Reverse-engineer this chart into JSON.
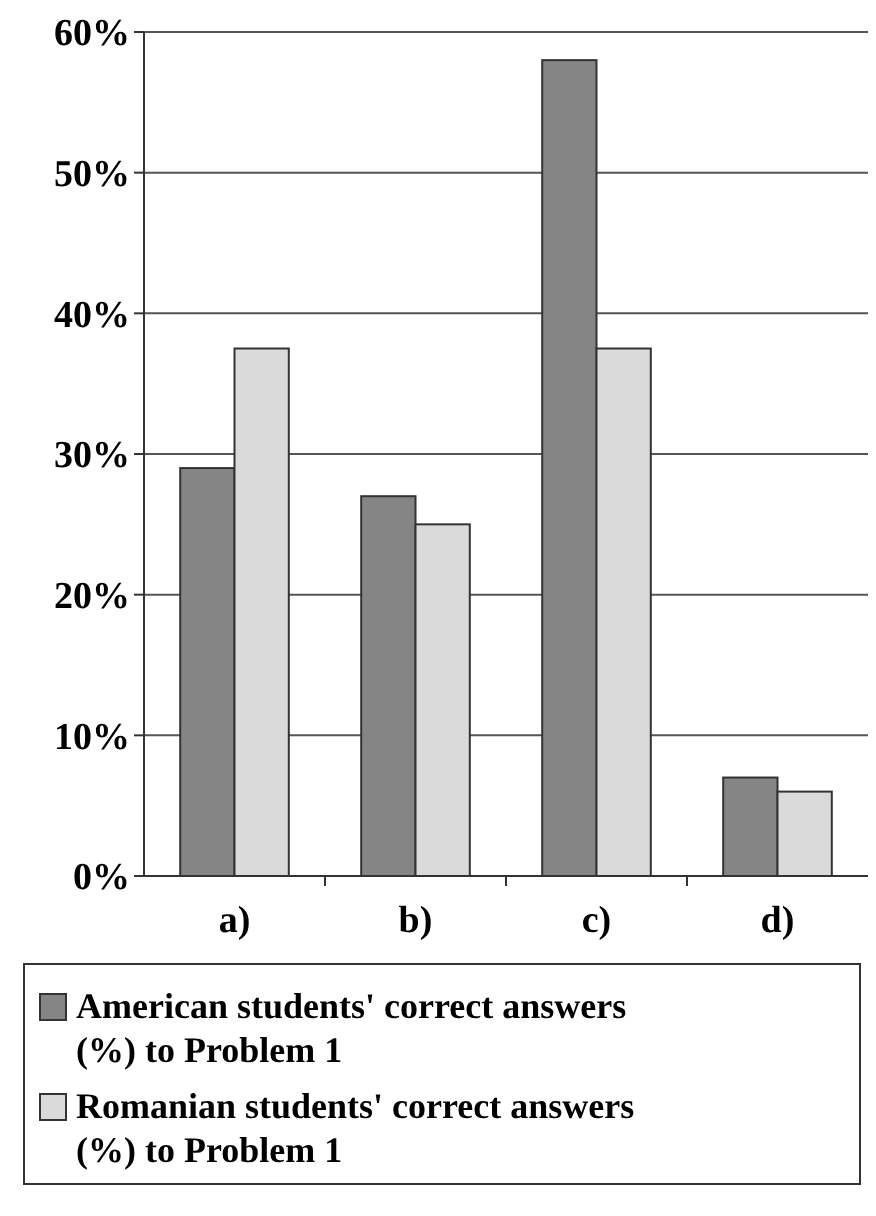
{
  "chart_data": {
    "type": "bar",
    "categories": [
      "a)",
      "b)",
      "c)",
      "d)"
    ],
    "series": [
      {
        "name": "American students' correct answers (%) to Problem 1",
        "color": "#858585",
        "values": [
          29,
          27,
          58,
          7
        ]
      },
      {
        "name": "Romanian students' correct answers (%) to Problem 1",
        "color": "#dadada",
        "values": [
          37.5,
          25,
          37.5,
          6
        ]
      }
    ],
    "ylim": [
      0,
      60
    ],
    "yticks": [
      {
        "value": 0,
        "label": "0%"
      },
      {
        "value": 10,
        "label": "10%"
      },
      {
        "value": 20,
        "label": "20%"
      },
      {
        "value": 30,
        "label": "30%"
      },
      {
        "value": 40,
        "label": "40%"
      },
      {
        "value": 50,
        "label": "50%"
      },
      {
        "value": 60,
        "label": "60%"
      }
    ],
    "grid": "y",
    "legend": "bottom"
  }
}
